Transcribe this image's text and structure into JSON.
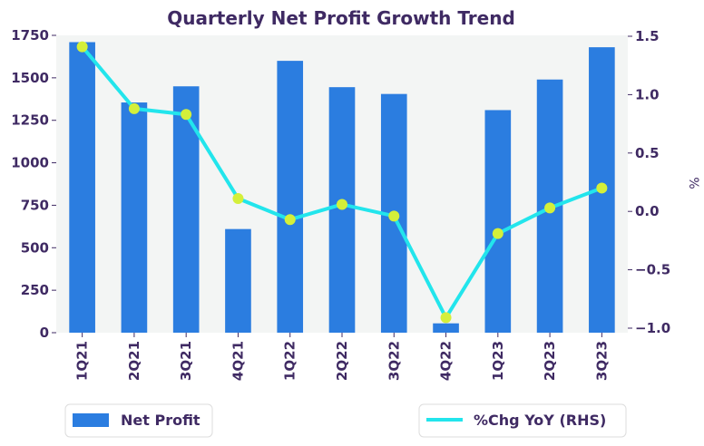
{
  "chart_data": {
    "type": "bar",
    "title": "Quarterly Net Profit Growth Trend",
    "categories": [
      "1Q21",
      "2Q21",
      "3Q21",
      "4Q21",
      "1Q22",
      "2Q22",
      "3Q22",
      "4Q22",
      "1Q23",
      "2Q23",
      "3Q23"
    ],
    "series": [
      {
        "name": "Net Profit",
        "type": "bar",
        "axis": "left",
        "color": "#2b7de0",
        "values": [
          1710,
          1355,
          1450,
          610,
          1600,
          1445,
          1405,
          55,
          1310,
          1490,
          1680
        ]
      },
      {
        "name": "%Chg YoY (RHS)",
        "type": "line",
        "axis": "right",
        "color": "#22e5ec",
        "marker_color": "#d4ef3a",
        "values": [
          1.41,
          0.88,
          0.83,
          0.11,
          -0.07,
          0.06,
          -0.04,
          -0.91,
          -0.19,
          0.03,
          0.2
        ]
      }
    ],
    "y_left": {
      "ylim": [
        0,
        1750
      ],
      "ticks": [
        "0",
        "250",
        "500",
        "750",
        "1000",
        "1250",
        "1500",
        "1750"
      ]
    },
    "y_right": {
      "ylabel": "%",
      "ylim": [
        -1.0,
        1.5
      ],
      "ticks": [
        "−1.0",
        "−0.5",
        "0.0",
        "0.5",
        "1.0",
        "1.5"
      ]
    },
    "plot_background": "#f3f5f4",
    "grid": false,
    "legend": "bottom"
  }
}
